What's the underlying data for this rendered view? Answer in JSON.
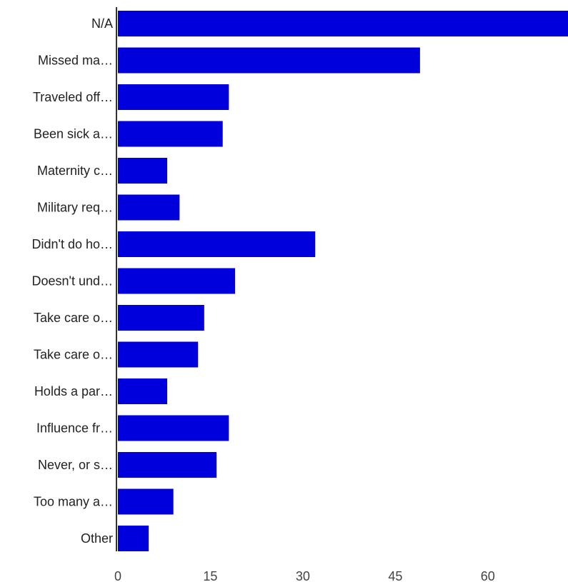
{
  "chart_data": {
    "type": "bar",
    "orientation": "horizontal",
    "title": "",
    "xlabel": "",
    "ylabel": "",
    "categories": [
      "N/A",
      "Missed ma…",
      "Traveled off…",
      "Been sick a…",
      "Maternity c…",
      "Military req…",
      "Didn't do ho…",
      "Doesn't und…",
      "Take care o…",
      "Take care o…",
      "Holds a par…",
      "Influence fr…",
      "Never, or s…",
      "Too many a…",
      "Other"
    ],
    "values": [
      73,
      49,
      18,
      17,
      8,
      10,
      32,
      19,
      14,
      13,
      8,
      18,
      16,
      9,
      5
    ],
    "xlim": [
      0,
      73
    ],
    "xticks": [
      0,
      15,
      30,
      45,
      60
    ],
    "xtick_labels": [
      "0",
      "15",
      "30",
      "45",
      "60"
    ],
    "grid": false,
    "legend": "none",
    "colors": {
      "bar": "#0000dd",
      "axis": "#333333"
    }
  }
}
